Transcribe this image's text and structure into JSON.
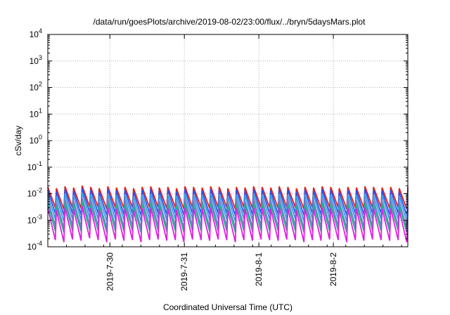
{
  "chart_data": {
    "type": "line",
    "title": "/data/run/goesPlots/archive/2019-08-02/23:00/flux/../bryn/5daysMars.plot",
    "xlabel": "Coordinated Universal Time (UTC)",
    "ylabel": "cSv/day",
    "yscale": "log",
    "ylim": [
      0.0001,
      10000
    ],
    "xlim": [
      "2019-07-29T04:00",
      "2019-08-03T00:00"
    ],
    "y_ticks": [
      {
        "base": "10",
        "exp": "-4",
        "value": 0.0001
      },
      {
        "base": "10",
        "exp": "-3",
        "value": 0.001
      },
      {
        "base": "10",
        "exp": "-2",
        "value": 0.01
      },
      {
        "base": "10",
        "exp": "-1",
        "value": 0.1
      },
      {
        "base": "10",
        "exp": "0",
        "value": 1
      },
      {
        "base": "10",
        "exp": "1",
        "value": 10
      },
      {
        "base": "10",
        "exp": "2",
        "value": 100
      },
      {
        "base": "10",
        "exp": "3",
        "value": 1000
      },
      {
        "base": "10",
        "exp": "4",
        "value": 10000
      }
    ],
    "x_ticks": [
      {
        "label": "2019-7-30",
        "value": "2019-07-30T00:00"
      },
      {
        "label": "2019-7-31",
        "value": "2019-07-31T00:00"
      },
      {
        "label": "2019-8-1",
        "value": "2019-08-01T00:00"
      },
      {
        "label": "2019-8-2",
        "value": "2019-08-02T00:00"
      }
    ],
    "grid": true,
    "series": [
      {
        "color": "#e0201c",
        "peaks": [
          0.018,
          0.016,
          0.019,
          0.017,
          0.02,
          0.018,
          0.016,
          0.019,
          0.017,
          0.018,
          0.016,
          0.018,
          0.019,
          0.017,
          0.018,
          0.016,
          0.019,
          0.018,
          0.017,
          0.019,
          0.018,
          0.016,
          0.018,
          0.017,
          0.019,
          0.018,
          0.017,
          0.019,
          0.018,
          0.016,
          0.018,
          0.017,
          0.019,
          0.018,
          0.016,
          0.018,
          0.017,
          0.019,
          0.018,
          0.017,
          0.018,
          0.016
        ],
        "troughs": [
          0.003,
          0.0025,
          0.003,
          0.0028,
          0.0032,
          0.003,
          0.0026,
          0.003,
          0.0028,
          0.003,
          0.0025,
          0.003,
          0.003,
          0.0028,
          0.003,
          0.0026,
          0.003,
          0.003,
          0.0028,
          0.003,
          0.003,
          0.0026,
          0.003,
          0.0028,
          0.003,
          0.003,
          0.0028,
          0.003,
          0.003,
          0.0026,
          0.003,
          0.0028,
          0.003,
          0.003,
          0.0026,
          0.003,
          0.0028,
          0.003,
          0.003,
          0.0028,
          0.003,
          0.0026
        ]
      },
      {
        "color": "#3050f0",
        "peaks": [
          0.014,
          0.012,
          0.015,
          0.013,
          0.016,
          0.014,
          0.012,
          0.015,
          0.013,
          0.014,
          0.012,
          0.014,
          0.015,
          0.013,
          0.014,
          0.012,
          0.015,
          0.014,
          0.013,
          0.015,
          0.014,
          0.012,
          0.014,
          0.013,
          0.015,
          0.014,
          0.013,
          0.015,
          0.014,
          0.012,
          0.014,
          0.013,
          0.015,
          0.014,
          0.012,
          0.014,
          0.013,
          0.015,
          0.014,
          0.013,
          0.014,
          0.012
        ],
        "troughs": [
          0.0018,
          0.0015,
          0.0018,
          0.0016,
          0.002,
          0.0018,
          0.0015,
          0.0018,
          0.0016,
          0.0018,
          0.0015,
          0.0018,
          0.0018,
          0.0016,
          0.0018,
          0.0015,
          0.0018,
          0.0018,
          0.0016,
          0.0018,
          0.0018,
          0.0015,
          0.0018,
          0.0016,
          0.0018,
          0.0018,
          0.0016,
          0.0018,
          0.0018,
          0.0015,
          0.0018,
          0.0016,
          0.0018,
          0.0018,
          0.0015,
          0.0018,
          0.0016,
          0.0018,
          0.0018,
          0.0016,
          0.0018,
          0.0015
        ]
      },
      {
        "color": "#30a0e8",
        "peaks": [
          0.009,
          0.008,
          0.01,
          0.009,
          0.011,
          0.009,
          0.008,
          0.01,
          0.009,
          0.009,
          0.008,
          0.009,
          0.01,
          0.009,
          0.009,
          0.008,
          0.01,
          0.009,
          0.009,
          0.01,
          0.009,
          0.008,
          0.009,
          0.009,
          0.01,
          0.009,
          0.009,
          0.01,
          0.009,
          0.008,
          0.009,
          0.009,
          0.01,
          0.009,
          0.008,
          0.009,
          0.009,
          0.01,
          0.009,
          0.009,
          0.009,
          0.008
        ],
        "troughs": [
          0.0011,
          0.0009,
          0.0011,
          0.001,
          0.0012,
          0.0011,
          0.0009,
          0.0011,
          0.001,
          0.0011,
          0.0009,
          0.0011,
          0.0011,
          0.001,
          0.0011,
          0.0009,
          0.0011,
          0.0011,
          0.001,
          0.0011,
          0.0011,
          0.0009,
          0.0011,
          0.001,
          0.0011,
          0.0011,
          0.001,
          0.0011,
          0.0011,
          0.0009,
          0.0011,
          0.001,
          0.0011,
          0.0011,
          0.0009,
          0.0011,
          0.001,
          0.0011,
          0.0011,
          0.001,
          0.0011,
          0.0009
        ]
      },
      {
        "color": "#7080c8",
        "peaks": [
          0.006,
          0.005,
          0.0065,
          0.0055,
          0.007,
          0.006,
          0.005,
          0.0065,
          0.0055,
          0.006,
          0.005,
          0.006,
          0.0065,
          0.0055,
          0.006,
          0.005,
          0.0065,
          0.006,
          0.0055,
          0.0065,
          0.006,
          0.005,
          0.006,
          0.0055,
          0.0065,
          0.006,
          0.0055,
          0.0065,
          0.006,
          0.005,
          0.006,
          0.0055,
          0.0065,
          0.006,
          0.005,
          0.006,
          0.0055,
          0.0065,
          0.006,
          0.0055,
          0.006,
          0.005
        ],
        "troughs": [
          0.0006,
          0.0005,
          0.0006,
          0.00055,
          0.0007,
          0.0006,
          0.0005,
          0.0006,
          0.00055,
          0.0006,
          0.0005,
          0.0006,
          0.0006,
          0.00055,
          0.0006,
          0.0005,
          0.0006,
          0.0006,
          0.00055,
          0.0006,
          0.0006,
          0.0005,
          0.0006,
          0.00055,
          0.0006,
          0.0006,
          0.00055,
          0.0006,
          0.0006,
          0.0005,
          0.0006,
          0.00055,
          0.0006,
          0.0006,
          0.0005,
          0.0006,
          0.00055,
          0.0006,
          0.0006,
          0.00055,
          0.0006,
          0.0005
        ]
      },
      {
        "color": "#20b090",
        "peaks": [
          0.004,
          0.0035,
          0.0045,
          0.004,
          0.005,
          0.004,
          0.0035,
          0.0045,
          0.004,
          0.004,
          0.0035,
          0.004,
          0.0045,
          0.004,
          0.004,
          0.0035,
          0.0045,
          0.004,
          0.004,
          0.0045,
          0.004,
          0.0035,
          0.004,
          0.004,
          0.0045,
          0.004,
          0.004,
          0.0045,
          0.004,
          0.0035,
          0.004,
          0.004,
          0.0045,
          0.004,
          0.0035,
          0.004,
          0.004,
          0.0045,
          0.004,
          0.004,
          0.004,
          0.0035
        ],
        "troughs": [
          0.0004,
          0.00035,
          0.0004,
          0.00038,
          0.00045,
          0.0004,
          0.00035,
          0.0004,
          0.00038,
          0.0004,
          0.00035,
          0.0004,
          0.0004,
          0.00038,
          0.0004,
          0.00035,
          0.0004,
          0.0004,
          0.00038,
          0.0004,
          0.0004,
          0.00035,
          0.0004,
          0.00038,
          0.0004,
          0.0004,
          0.00038,
          0.0004,
          0.0004,
          0.00035,
          0.0004,
          0.00038,
          0.0004,
          0.0004,
          0.00035,
          0.0004,
          0.00038,
          0.0004,
          0.0004,
          0.00038,
          0.0004,
          0.00035
        ]
      },
      {
        "color": "#e020e0",
        "peaks": [
          0.0028,
          0.0024,
          0.003,
          0.0027,
          0.0033,
          0.0028,
          0.0024,
          0.003,
          0.0027,
          0.0028,
          0.0024,
          0.0028,
          0.003,
          0.0027,
          0.0028,
          0.0024,
          0.003,
          0.0028,
          0.0027,
          0.003,
          0.0028,
          0.0024,
          0.0028,
          0.0027,
          0.003,
          0.0028,
          0.0027,
          0.003,
          0.0028,
          0.0024,
          0.0028,
          0.0027,
          0.003,
          0.0028,
          0.0024,
          0.0028,
          0.0027,
          0.003,
          0.0028,
          0.0027,
          0.0028,
          0.0024
        ],
        "troughs": [
          0.00018,
          0.00015,
          0.00019,
          0.00017,
          0.00021,
          0.00018,
          0.00015,
          0.00019,
          0.00017,
          0.00018,
          0.00015,
          0.00018,
          0.00019,
          0.00017,
          0.00018,
          0.00015,
          0.00019,
          0.00018,
          0.00017,
          0.00019,
          0.00018,
          0.00015,
          0.00018,
          0.00017,
          0.00019,
          0.00018,
          0.00017,
          0.00019,
          0.00018,
          0.00015,
          0.00018,
          0.00017,
          0.00019,
          0.00018,
          0.00015,
          0.00018,
          0.00017,
          0.00019,
          0.00018,
          0.00017,
          0.00018,
          0.00015
        ]
      }
    ]
  }
}
